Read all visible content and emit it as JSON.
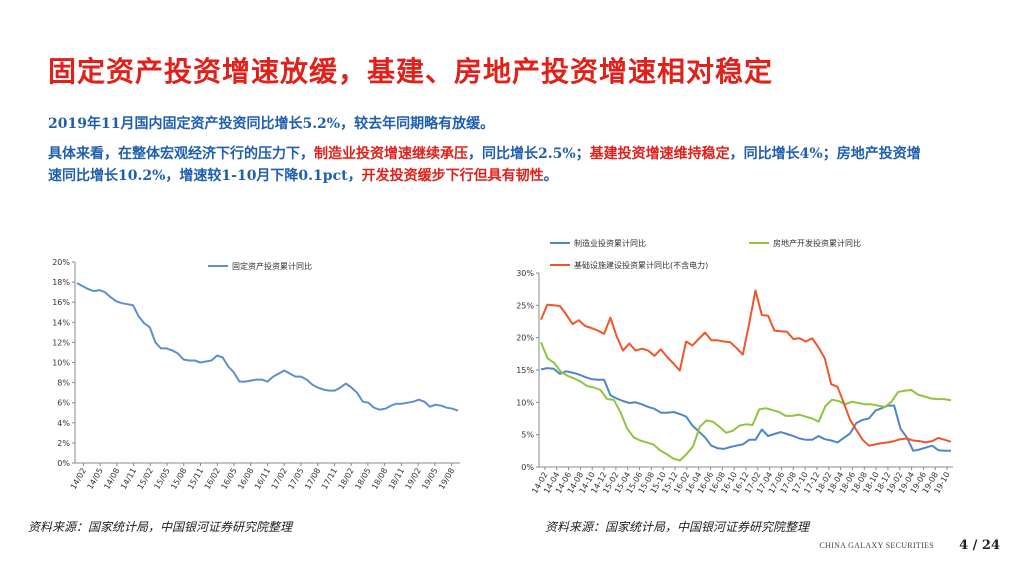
{
  "title": "固定资产投资增速放缓，基建、房地产投资增速相对稳定",
  "para1": "2019年11月国内固定资产投资同比增长5.2%，较去年同期略有放缓。",
  "para2": {
    "s1": "具体来看，在整体宏观经济下行的压力下，",
    "s2": "制造业投资增速继续承压",
    "s3": "，同比增长2.5%；",
    "s4": "基建投资增速维持稳定",
    "s5": "，同比增长4%；房地产投资增速同比增长10.2%，增速较1-10月下降0.1pct，",
    "s6": "开发投资缓步下行但具有韧性",
    "s7": "。"
  },
  "source_left": "资料来源：国家统计局，中国银河证券研究院整理",
  "source_right": "资料来源：国家统计局，中国银河证券研究院整理",
  "footer_brand": "CHINA GALAXY SECURITIES",
  "page_number": "4 / 24",
  "colors": {
    "title": "#e0201a",
    "text_blue": "#1f5fae",
    "manufacturing": "#4e86c6",
    "real_estate": "#8dc63f",
    "infrastructure": "#f0552b",
    "fai": "#5b8fd0"
  },
  "chart_data": [
    {
      "type": "line",
      "ylim": [
        0,
        20
      ],
      "yticks": [
        "0%",
        "2%",
        "4%",
        "6%",
        "8%",
        "10%",
        "12%",
        "14%",
        "16%",
        "18%",
        "20%"
      ],
      "xticks": [
        "14/02",
        "14/05",
        "14/08",
        "14/11",
        "15/02",
        "15/05",
        "15/08",
        "15/11",
        "16/02",
        "16/05",
        "16/08",
        "16/11",
        "17/02",
        "17/05",
        "17/08",
        "17/11",
        "18/02",
        "18/05",
        "18/08",
        "18/11",
        "19/02",
        "19/05",
        "19/08"
      ],
      "grid": false,
      "legend": "top-center",
      "series": [
        {
          "name": "固定资产投资累计同比",
          "values": [
            17.9,
            17.6,
            17.3,
            17.1,
            17.2,
            17.0,
            16.5,
            16.1,
            15.9,
            15.8,
            15.7,
            14.6,
            13.9,
            13.5,
            12.0,
            11.4,
            11.4,
            11.2,
            10.9,
            10.3,
            10.2,
            10.2,
            10.0,
            10.1,
            10.2,
            10.7,
            10.5,
            9.6,
            9.0,
            8.1,
            8.1,
            8.2,
            8.3,
            8.3,
            8.1,
            8.6,
            8.9,
            9.2,
            8.9,
            8.6,
            8.6,
            8.3,
            7.8,
            7.5,
            7.3,
            7.2,
            7.2,
            7.5,
            7.9,
            7.5,
            7.0,
            6.1,
            6.0,
            5.5,
            5.3,
            5.4,
            5.7,
            5.9,
            5.9,
            6.0,
            6.1,
            6.3,
            6.1,
            5.6,
            5.8,
            5.7,
            5.5,
            5.4,
            5.2
          ]
        }
      ]
    },
    {
      "type": "line",
      "ylim": [
        0,
        30
      ],
      "yticks": [
        "0%",
        "5%",
        "10%",
        "15%",
        "20%",
        "25%",
        "30%"
      ],
      "xticks": [
        "14-02",
        "14-04",
        "14-06",
        "14-08",
        "14-10",
        "14-12",
        "15-02",
        "15-04",
        "15-06",
        "15-08",
        "15-10",
        "15-12",
        "16-02",
        "16-04",
        "16-06",
        "16-08",
        "16-10",
        "16-12",
        "17-02",
        "17-04",
        "17-06",
        "17-08",
        "17-10",
        "17-12",
        "18-02",
        "18-04",
        "18-06",
        "18-08",
        "18-10",
        "18-12",
        "19-02",
        "19-04",
        "19-06",
        "19-08",
        "19-10"
      ],
      "grid": false,
      "legend": "top",
      "series": [
        {
          "name": "制造业投资累计同比",
          "color": "#4e86c6",
          "values": [
            15.1,
            15.3,
            15.2,
            14.4,
            14.8,
            14.6,
            14.3,
            13.9,
            13.6,
            13.5,
            13.5,
            11.1,
            10.6,
            10.2,
            9.9,
            10.0,
            9.7,
            9.3,
            9.0,
            8.4,
            8.4,
            8.5,
            8.2,
            7.8,
            6.4,
            5.5,
            4.6,
            3.3,
            2.9,
            2.8,
            3.1,
            3.3,
            3.5,
            4.2,
            4.2,
            5.8,
            4.8,
            5.1,
            5.4,
            5.1,
            4.8,
            4.4,
            4.2,
            4.2,
            4.8,
            4.3,
            4.1,
            3.8,
            4.5,
            5.2,
            6.8,
            7.3,
            7.5,
            8.7,
            9.1,
            9.5,
            9.5,
            5.9,
            4.6,
            2.5,
            2.7,
            3.0,
            3.3,
            2.6,
            2.5,
            2.5
          ]
        },
        {
          "name": "房地产开发投资累计同比",
          "color": "#8dc63f",
          "values": [
            19.3,
            16.8,
            16.1,
            14.7,
            14.1,
            13.7,
            13.2,
            12.5,
            12.3,
            11.9,
            10.5,
            10.4,
            8.5,
            6.0,
            4.6,
            4.1,
            3.8,
            3.5,
            2.6,
            2.0,
            1.3,
            1.0,
            2.0,
            3.2,
            6.2,
            7.2,
            7.0,
            6.2,
            5.3,
            5.6,
            6.4,
            6.6,
            6.5,
            8.9,
            9.1,
            8.8,
            8.5,
            7.9,
            7.9,
            8.1,
            7.8,
            7.5,
            7.0,
            9.4,
            10.4,
            10.2,
            9.7,
            10.1,
            9.9,
            9.7,
            9.7,
            9.5,
            9.3,
            10.1,
            11.6,
            11.8,
            11.9,
            11.2,
            10.9,
            10.6,
            10.5,
            10.5,
            10.3
          ]
        },
        {
          "name": "基础设施建设投资累计同比(不含电力)",
          "color": "#f0552b",
          "values": [
            22.8,
            25.1,
            25.0,
            24.9,
            23.6,
            22.1,
            22.7,
            21.8,
            21.5,
            21.1,
            20.6,
            23.1,
            20.2,
            18.0,
            19.1,
            18.0,
            18.3,
            18.0,
            17.2,
            18.2,
            17.0,
            16.0,
            14.9,
            19.4,
            18.8,
            19.8,
            20.8,
            19.6,
            19.6,
            19.4,
            19.3,
            18.4,
            17.4,
            22.2,
            27.3,
            23.5,
            23.4,
            21.1,
            21.0,
            20.9,
            19.8,
            19.9,
            19.4,
            19.9,
            18.5,
            16.8,
            12.8,
            12.4,
            9.9,
            7.3,
            5.7,
            4.2,
            3.3,
            3.5,
            3.7,
            3.8,
            4.0,
            4.3,
            4.4,
            4.1,
            4.0,
            3.8,
            4.0,
            4.5,
            4.2,
            3.9
          ]
        }
      ]
    }
  ]
}
